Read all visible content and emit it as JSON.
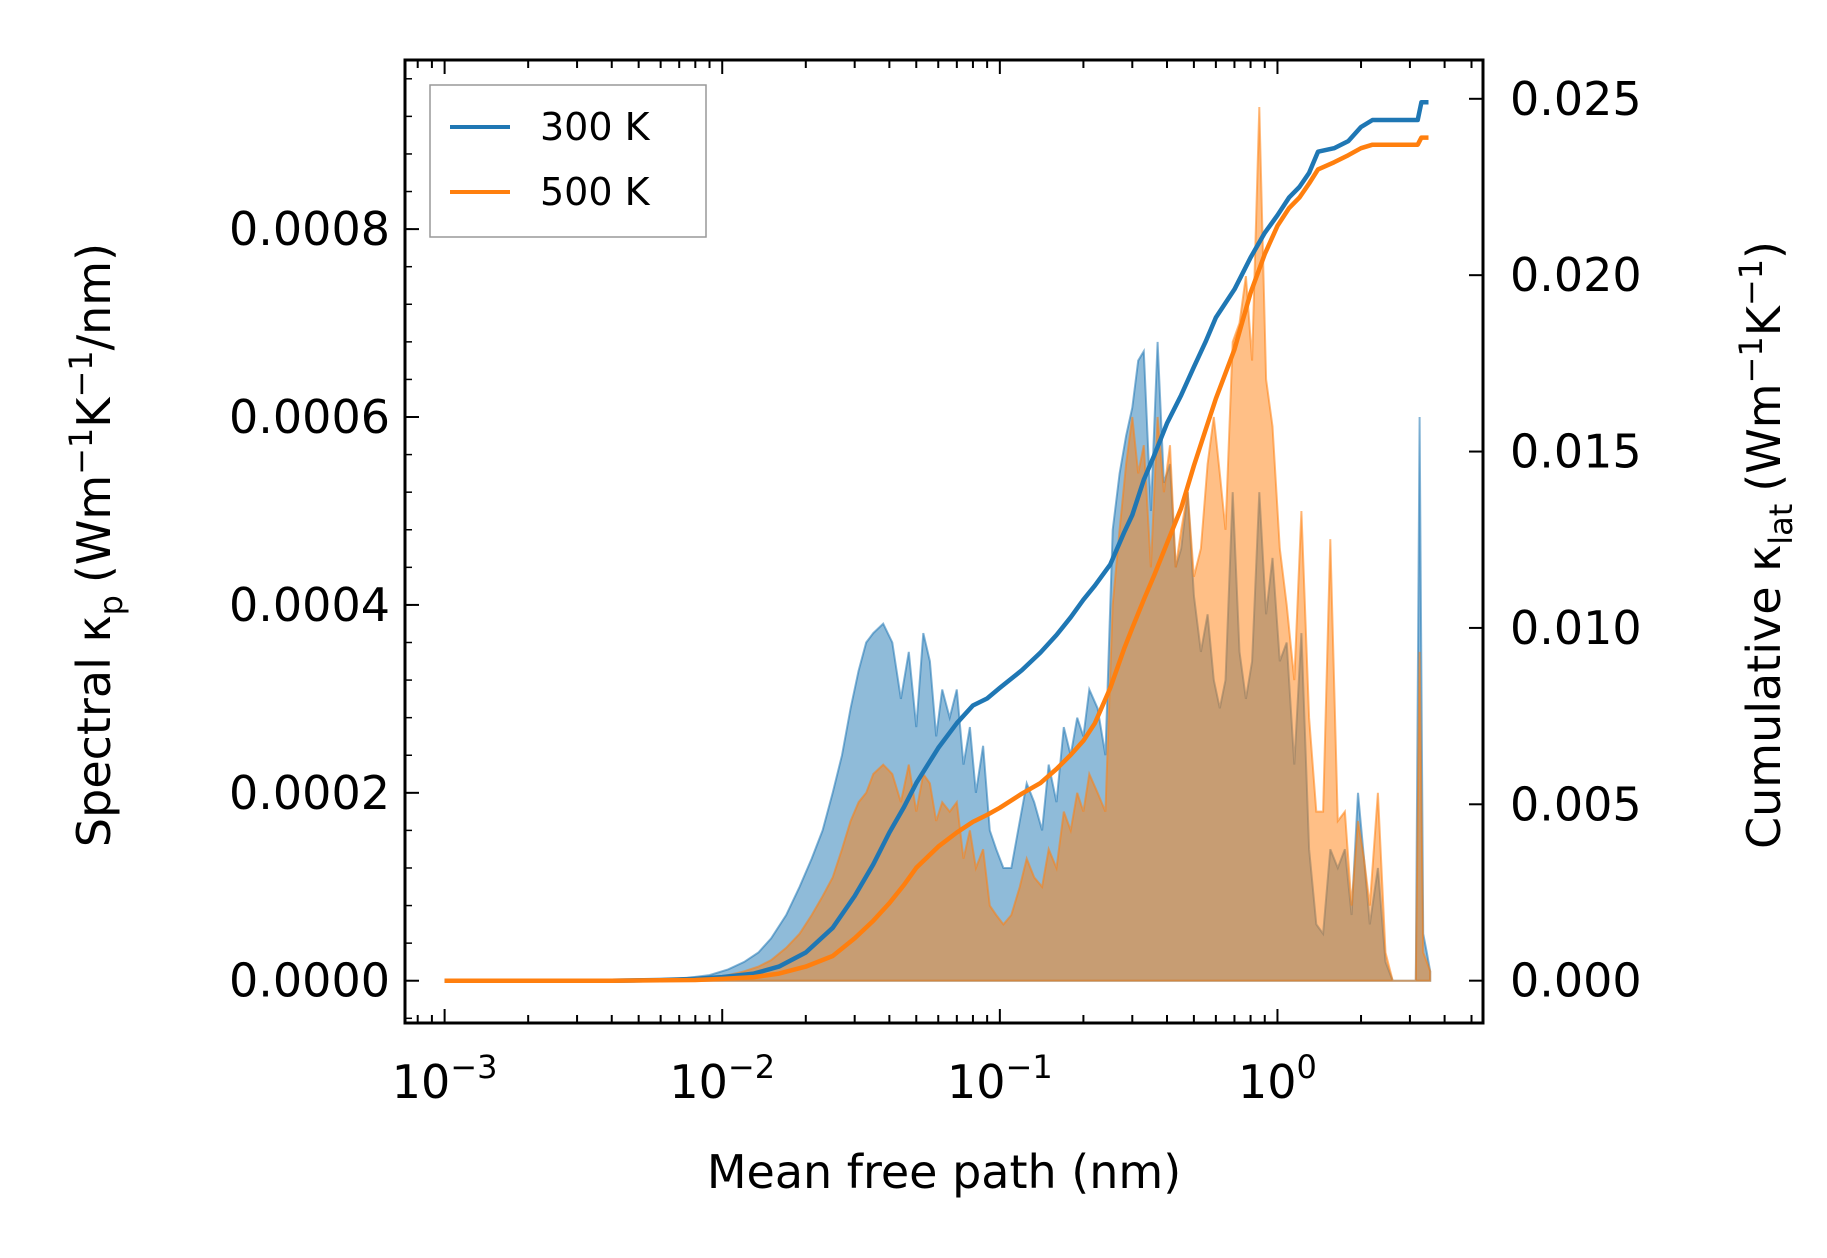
{
  "chart_data": {
    "type": "area",
    "xscale": "log",
    "xlabel": "Mean free path (nm)",
    "ylabel_left": {
      "prefix": "Spectral κ",
      "sub": "p",
      "units": "(Wm",
      "e1": "−1",
      "mid": "K",
      "e2": "−1",
      "tail": "/nm)"
    },
    "ylabel_right": {
      "prefix": "Cumulative κ",
      "sub": "lat",
      "units": "(Wm",
      "e1": "−1",
      "mid": "K",
      "e2": "−1",
      "tail": ")"
    },
    "xlim": [
      0.00072,
      5.5
    ],
    "ylim_left": [
      -4.5e-05,
      0.00098
    ],
    "ylim_right": [
      -0.0012,
      0.0261
    ],
    "xticks": [
      {
        "value": 0.001,
        "base": "10",
        "exp": "−3"
      },
      {
        "value": 0.01,
        "base": "10",
        "exp": "−2"
      },
      {
        "value": 0.1,
        "base": "10",
        "exp": "−1"
      },
      {
        "value": 1,
        "base": "10",
        "exp": "0"
      }
    ],
    "yticks_left": [
      {
        "value": 0.0,
        "label": "0.0000"
      },
      {
        "value": 0.0002,
        "label": "0.0002"
      },
      {
        "value": 0.0004,
        "label": "0.0004"
      },
      {
        "value": 0.0006,
        "label": "0.0006"
      },
      {
        "value": 0.0008,
        "label": "0.0008"
      }
    ],
    "yticks_right": [
      {
        "value": 0.0,
        "label": "0.000"
      },
      {
        "value": 0.005,
        "label": "0.005"
      },
      {
        "value": 0.01,
        "label": "0.010"
      },
      {
        "value": 0.015,
        "label": "0.015"
      },
      {
        "value": 0.02,
        "label": "0.020"
      },
      {
        "value": 0.025,
        "label": "0.025"
      }
    ],
    "legend": {
      "position": "upper-left",
      "entries": [
        {
          "name": "300 K",
          "color": "#1f77b4"
        },
        {
          "name": "500 K",
          "color": "#ff7f0e"
        }
      ]
    },
    "series": [
      {
        "name": "300 K",
        "color": "#1f77b4",
        "spectral": {
          "x": [
            0.001,
            0.0016,
            0.0025,
            0.004,
            0.006,
            0.0075,
            0.009,
            0.0105,
            0.012,
            0.0135,
            0.015,
            0.017,
            0.019,
            0.021,
            0.023,
            0.025,
            0.027,
            0.029,
            0.031,
            0.033,
            0.035,
            0.038,
            0.041,
            0.044,
            0.047,
            0.05,
            0.053,
            0.056,
            0.059,
            0.062,
            0.066,
            0.07,
            0.074,
            0.078,
            0.082,
            0.087,
            0.092,
            0.097,
            0.103,
            0.11,
            0.118,
            0.125,
            0.133,
            0.142,
            0.15,
            0.16,
            0.17,
            0.18,
            0.19,
            0.2,
            0.21,
            0.225,
            0.24,
            0.255,
            0.27,
            0.285,
            0.3,
            0.315,
            0.33,
            0.35,
            0.37,
            0.39,
            0.41,
            0.43,
            0.45,
            0.475,
            0.5,
            0.53,
            0.56,
            0.59,
            0.62,
            0.65,
            0.69,
            0.73,
            0.77,
            0.81,
            0.86,
            0.91,
            0.96,
            1.02,
            1.08,
            1.15,
            1.22,
            1.3,
            1.38,
            1.46,
            1.55,
            1.65,
            1.75,
            1.85,
            1.95,
            2.05,
            2.15,
            2.3,
            2.45,
            2.6,
            2.75,
            2.9,
            3.05,
            3.15,
            3.25,
            3.35,
            3.45,
            3.55
          ],
          "y": [
            0,
            0,
            0,
            0,
            1e-06,
            3e-06,
            6e-06,
            1.2e-05,
            2e-05,
            3e-05,
            4.5e-05,
            7e-05,
            0.0001,
            0.00013,
            0.00016,
            0.0002,
            0.00024,
            0.00029,
            0.00033,
            0.00036,
            0.00037,
            0.00038,
            0.00036,
            0.0003,
            0.00035,
            0.00027,
            0.00037,
            0.00034,
            0.00026,
            0.00031,
            0.00028,
            0.00031,
            0.00023,
            0.00027,
            0.0002,
            0.00025,
            0.00016,
            0.00014,
            0.00012,
            0.00012,
            0.00017,
            0.00021,
            0.00019,
            0.00016,
            0.00023,
            0.00019,
            0.00027,
            0.00024,
            0.00028,
            0.00026,
            0.00031,
            0.00029,
            0.00024,
            0.00048,
            0.00054,
            0.00058,
            0.00061,
            0.00066,
            0.00067,
            0.0005,
            0.00068,
            0.00053,
            0.00055,
            0.00044,
            0.00046,
            0.00052,
            0.00041,
            0.00035,
            0.00039,
            0.00032,
            0.00029,
            0.00032,
            0.00052,
            0.00035,
            0.0003,
            0.00034,
            0.00052,
            0.00039,
            0.00045,
            0.00034,
            0.00036,
            0.00023,
            0.00037,
            0.00014,
            6e-05,
            5e-05,
            0.00014,
            0.00012,
            0.00014,
            7e-05,
            0.0002,
            0.00013,
            6e-05,
            0.00012,
            2e-05,
            0,
            0,
            0,
            0,
            0,
            0.0006,
            5e-05,
            3e-05,
            1e-05
          ]
        },
        "cumulative": {
          "x": [
            0.001,
            0.004,
            0.006,
            0.008,
            0.01,
            0.013,
            0.016,
            0.02,
            0.025,
            0.03,
            0.035,
            0.04,
            0.045,
            0.05,
            0.06,
            0.07,
            0.08,
            0.09,
            0.1,
            0.12,
            0.14,
            0.16,
            0.18,
            0.2,
            0.22,
            0.25,
            0.28,
            0.3,
            0.33,
            0.36,
            0.4,
            0.45,
            0.5,
            0.55,
            0.6,
            0.7,
            0.8,
            0.9,
            1.0,
            1.1,
            1.2,
            1.3,
            1.4,
            1.6,
            1.8,
            2.0,
            2.2,
            2.5,
            2.8,
            3.0,
            3.2,
            3.3,
            3.5
          ],
          "y": [
            0,
            0,
            2e-05,
            5e-05,
            0.0001,
            0.0002,
            0.0004,
            0.0008,
            0.0015,
            0.0024,
            0.0033,
            0.0042,
            0.0049,
            0.0056,
            0.0066,
            0.0073,
            0.0078,
            0.008,
            0.0083,
            0.0088,
            0.0093,
            0.0098,
            0.0103,
            0.0108,
            0.0112,
            0.0118,
            0.0127,
            0.0132,
            0.0142,
            0.0149,
            0.0158,
            0.0166,
            0.0174,
            0.0181,
            0.0188,
            0.0196,
            0.0205,
            0.0212,
            0.0217,
            0.0222,
            0.0225,
            0.0229,
            0.0235,
            0.0236,
            0.0238,
            0.0242,
            0.0244,
            0.0244,
            0.0244,
            0.0244,
            0.0244,
            0.0249,
            0.0249
          ]
        }
      },
      {
        "name": "500 K",
        "color": "#ff7f0e",
        "spectral": {
          "x": [
            0.001,
            0.0016,
            0.0025,
            0.004,
            0.006,
            0.0075,
            0.009,
            0.0105,
            0.012,
            0.0135,
            0.015,
            0.017,
            0.019,
            0.021,
            0.023,
            0.025,
            0.027,
            0.029,
            0.031,
            0.033,
            0.035,
            0.038,
            0.041,
            0.044,
            0.047,
            0.05,
            0.053,
            0.056,
            0.059,
            0.062,
            0.066,
            0.07,
            0.074,
            0.078,
            0.082,
            0.087,
            0.092,
            0.097,
            0.103,
            0.11,
            0.118,
            0.125,
            0.133,
            0.142,
            0.15,
            0.16,
            0.17,
            0.18,
            0.19,
            0.2,
            0.21,
            0.225,
            0.24,
            0.255,
            0.27,
            0.285,
            0.3,
            0.315,
            0.33,
            0.35,
            0.37,
            0.39,
            0.41,
            0.43,
            0.45,
            0.475,
            0.5,
            0.53,
            0.56,
            0.59,
            0.62,
            0.65,
            0.69,
            0.73,
            0.77,
            0.81,
            0.86,
            0.91,
            0.96,
            1.02,
            1.08,
            1.15,
            1.22,
            1.3,
            1.38,
            1.46,
            1.55,
            1.65,
            1.75,
            1.85,
            1.95,
            2.05,
            2.15,
            2.3,
            2.45,
            2.6,
            2.75,
            2.9,
            3.05,
            3.15,
            3.25,
            3.35,
            3.45,
            3.55
          ],
          "y": [
            0,
            0,
            0,
            0,
            5e-07,
            1e-06,
            3e-06,
            6e-06,
            1e-05,
            1.5e-05,
            2.2e-05,
            3.5e-05,
            5e-05,
            7e-05,
            9e-05,
            0.00011,
            0.00014,
            0.00017,
            0.00019,
            0.0002,
            0.00022,
            0.00023,
            0.00022,
            0.00019,
            0.00023,
            0.00018,
            0.00022,
            0.00021,
            0.00017,
            0.00019,
            0.00018,
            0.00019,
            0.00013,
            0.00016,
            0.00012,
            0.00014,
            8e-05,
            7e-05,
            6e-05,
            7e-05,
            0.0001,
            0.00013,
            0.00011,
            0.0001,
            0.00014,
            0.00012,
            0.00018,
            0.00016,
            0.0002,
            0.00018,
            0.00022,
            0.0002,
            0.00018,
            0.0004,
            0.00048,
            0.00055,
            0.0006,
            0.00054,
            0.00057,
            0.00044,
            0.0006,
            0.00052,
            0.00057,
            0.00044,
            0.00048,
            0.00052,
            0.00043,
            0.00046,
            0.00055,
            0.0006,
            0.00054,
            0.00048,
            0.00068,
            0.0007,
            0.00075,
            0.00066,
            0.00093,
            0.00064,
            0.00059,
            0.00046,
            0.0004,
            0.00032,
            0.0005,
            0.00028,
            0.00018,
            0.00018,
            0.00047,
            0.00017,
            0.00018,
            8e-05,
            0.00017,
            0.00013,
            8e-05,
            0.0002,
            3e-05,
            0,
            0,
            0,
            0,
            0,
            0.00035,
            3e-05,
            2e-05,
            1e-05
          ]
        },
        "cumulative": {
          "x": [
            0.001,
            0.004,
            0.006,
            0.008,
            0.01,
            0.013,
            0.016,
            0.02,
            0.025,
            0.03,
            0.035,
            0.04,
            0.045,
            0.05,
            0.06,
            0.07,
            0.08,
            0.09,
            0.1,
            0.12,
            0.14,
            0.16,
            0.18,
            0.2,
            0.22,
            0.25,
            0.28,
            0.3,
            0.33,
            0.36,
            0.4,
            0.45,
            0.5,
            0.55,
            0.6,
            0.7,
            0.8,
            0.9,
            1.0,
            1.1,
            1.2,
            1.3,
            1.4,
            1.6,
            1.8,
            2.0,
            2.2,
            2.5,
            2.8,
            3.0,
            3.2,
            3.3,
            3.5
          ],
          "y": [
            0,
            0,
            1e-05,
            2e-05,
            5e-05,
            0.0001,
            0.0002,
            0.0004,
            0.0007,
            0.0012,
            0.0017,
            0.0022,
            0.0027,
            0.0032,
            0.0038,
            0.0042,
            0.0045,
            0.0047,
            0.0049,
            0.0053,
            0.0056,
            0.006,
            0.0064,
            0.0068,
            0.0073,
            0.0083,
            0.0094,
            0.01,
            0.0108,
            0.0115,
            0.0124,
            0.0134,
            0.0146,
            0.0156,
            0.0165,
            0.0179,
            0.0195,
            0.0206,
            0.0214,
            0.0219,
            0.0222,
            0.0226,
            0.023,
            0.0232,
            0.0234,
            0.0236,
            0.0237,
            0.0237,
            0.0237,
            0.0237,
            0.0237,
            0.0239,
            0.0239
          ]
        }
      }
    ]
  }
}
